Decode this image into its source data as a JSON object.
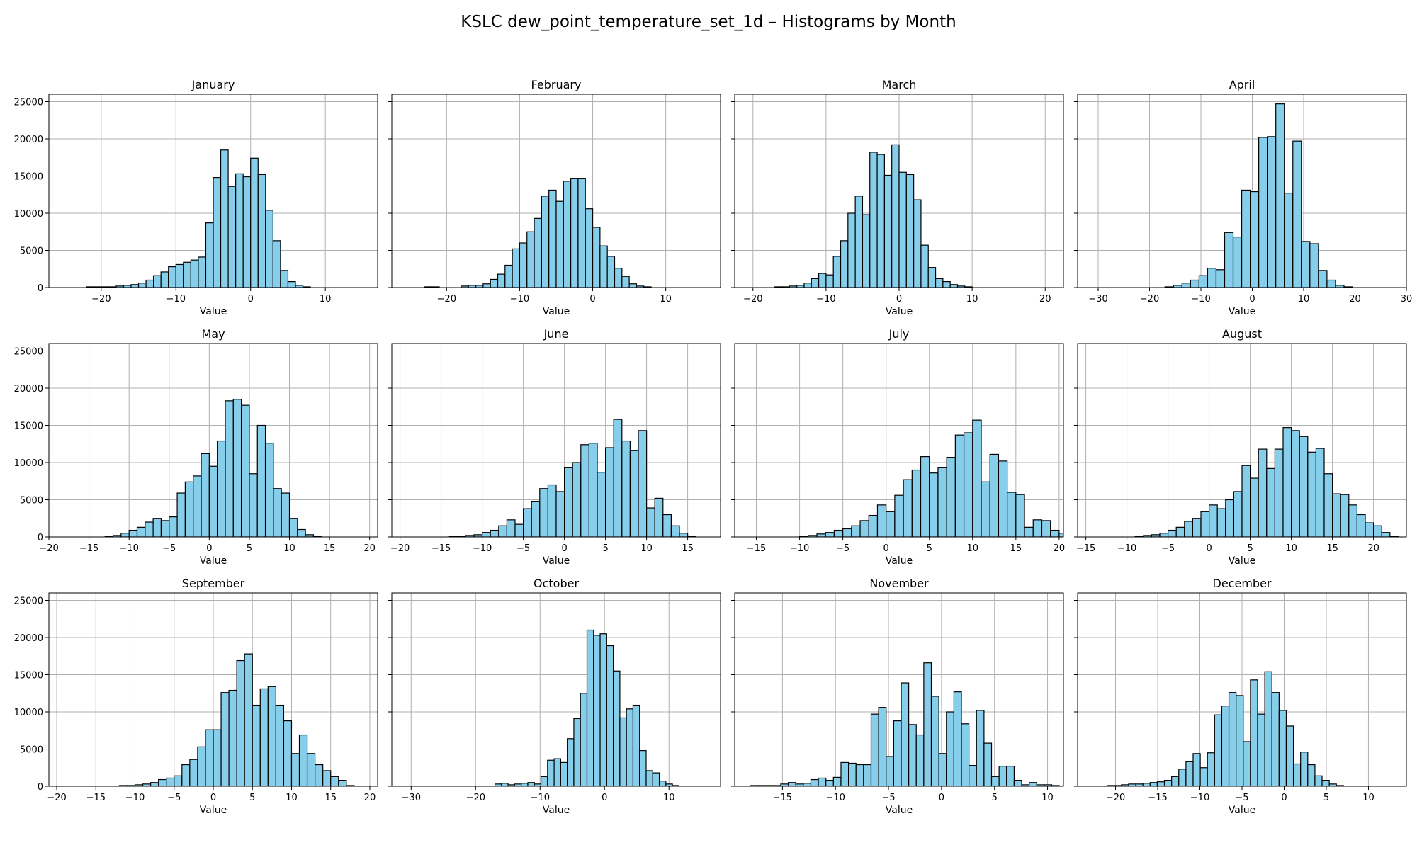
{
  "figure": {
    "title": "KSLC dew_point_temperature_set_1d – Histograms by Month"
  },
  "style": {
    "bar_fill": "#87ceeb",
    "bar_edge": "#000000",
    "grid_color": "#b0b0b0"
  },
  "chart_data": {
    "type": "bar",
    "shared_y": true,
    "ylim": [
      0,
      26000
    ],
    "yticks": [
      0,
      5000,
      10000,
      15000,
      20000,
      25000
    ],
    "grid": true,
    "panels": [
      {
        "title": "January",
        "xlabel": "Value",
        "xlim": [
          -27,
          17
        ],
        "xticks": [
          -20,
          -10,
          0,
          10
        ],
        "bin_start": -22,
        "bin_width": 1,
        "values": [
          100,
          100,
          100,
          100,
          200,
          300,
          400,
          600,
          1000,
          1600,
          2100,
          2800,
          3100,
          3400,
          3700,
          4100,
          8700,
          14800,
          18500,
          13600,
          15300,
          14900,
          17400,
          15200,
          10400,
          6300,
          2300,
          800,
          300,
          100,
          0,
          0,
          0,
          0,
          0,
          0,
          0,
          0
        ]
      },
      {
        "title": "February",
        "xlabel": "Value",
        "xlim": [
          -27.5,
          17.5
        ],
        "xticks": [
          -20,
          -10,
          0,
          10
        ],
        "bin_start": -23,
        "bin_width": 1,
        "values": [
          100,
          100,
          0,
          0,
          0,
          200,
          300,
          300,
          500,
          1100,
          1800,
          3000,
          5200,
          6000,
          7500,
          9300,
          12300,
          13100,
          11600,
          14300,
          14700,
          14700,
          10600,
          8100,
          5600,
          4200,
          2600,
          1500,
          500,
          200,
          100,
          0,
          0,
          0,
          0,
          0,
          0,
          0,
          0
        ]
      },
      {
        "title": "March",
        "xlabel": "Value",
        "xlim": [
          -22.5,
          22.5
        ],
        "xticks": [
          -20,
          -10,
          0,
          10,
          20
        ],
        "bin_start": -17,
        "bin_width": 1,
        "values": [
          100,
          100,
          200,
          300,
          600,
          1200,
          1900,
          1700,
          4200,
          6300,
          10000,
          12300,
          9800,
          18200,
          17900,
          15100,
          19200,
          15500,
          15200,
          11800,
          5700,
          2700,
          1200,
          800,
          400,
          200,
          100,
          0,
          0,
          0,
          0,
          0,
          0,
          0,
          0,
          0,
          0,
          0
        ]
      },
      {
        "title": "April",
        "xlabel": "Value",
        "xlim": [
          -34,
          30
        ],
        "xticks": [
          -30,
          -20,
          -10,
          0,
          10,
          20,
          30
        ],
        "bin_start": -17,
        "bin_width": 1.66,
        "values": [
          100,
          300,
          600,
          1000,
          1600,
          2600,
          2400,
          7400,
          6800,
          13100,
          12900,
          20200,
          20300,
          24700,
          12700,
          19700,
          6200,
          5900,
          2300,
          1000,
          300,
          100,
          0,
          0,
          0,
          0,
          0
        ]
      },
      {
        "title": "May",
        "xlabel": "Value",
        "xlim": [
          -20,
          21
        ],
        "xticks": [
          -20,
          -15,
          -10,
          -5,
          0,
          5,
          10,
          15,
          20
        ],
        "bin_start": -13,
        "bin_width": 1,
        "values": [
          100,
          200,
          500,
          900,
          1300,
          2000,
          2500,
          2200,
          2700,
          5900,
          7400,
          8200,
          11200,
          9500,
          12900,
          18300,
          18500,
          17700,
          8500,
          15000,
          12600,
          6500,
          5900,
          2500,
          1000,
          300,
          100,
          0,
          0,
          0,
          0,
          0,
          0
        ]
      },
      {
        "title": "June",
        "xlabel": "Value",
        "xlim": [
          -21,
          19
        ],
        "xticks": [
          -20,
          -15,
          -10,
          -5,
          0,
          5,
          10,
          15
        ],
        "bin_start": -14,
        "bin_width": 1,
        "values": [
          100,
          100,
          200,
          300,
          600,
          900,
          1500,
          2300,
          1700,
          3800,
          4800,
          6500,
          7000,
          6100,
          9300,
          10000,
          12400,
          12600,
          8700,
          12000,
          15800,
          12900,
          11600,
          14300,
          3900,
          5200,
          3000,
          1500,
          500,
          100,
          0,
          0,
          0
        ]
      },
      {
        "title": "July",
        "xlabel": "Value",
        "xlim": [
          -17.5,
          20.5
        ],
        "xticks": [
          -15,
          -10,
          -5,
          0,
          5,
          10,
          15,
          20
        ],
        "bin_start": -10,
        "bin_width": 1,
        "values": [
          100,
          200,
          400,
          600,
          900,
          1100,
          1500,
          2200,
          2900,
          4300,
          3400,
          5600,
          7700,
          9000,
          10800,
          8600,
          9300,
          10700,
          13700,
          14000,
          15700,
          7400,
          11100,
          10200,
          6000,
          5700,
          1300,
          2300,
          2200,
          900,
          500
        ]
      },
      {
        "title": "August",
        "xlabel": "Value",
        "xlim": [
          -16,
          24
        ],
        "xticks": [
          -15,
          -10,
          -5,
          0,
          5,
          10,
          15,
          20
        ],
        "bin_start": -9,
        "bin_width": 1,
        "values": [
          100,
          200,
          300,
          500,
          900,
          1300,
          2100,
          2500,
          3400,
          4300,
          3800,
          5000,
          6100,
          9600,
          7900,
          11800,
          9200,
          11800,
          14700,
          14300,
          13500,
          11400,
          11900,
          8500,
          5800,
          5700,
          4300,
          3000,
          1900,
          1500,
          600,
          100,
          0
        ]
      },
      {
        "title": "September",
        "xlabel": "Value",
        "xlim": [
          -21,
          21
        ],
        "xticks": [
          -20,
          -15,
          -10,
          -5,
          0,
          5,
          10,
          15,
          20
        ],
        "bin_start": -12,
        "bin_width": 1,
        "values": [
          100,
          100,
          200,
          300,
          500,
          900,
          1100,
          1400,
          2900,
          3600,
          5300,
          7600,
          7600,
          12600,
          12900,
          16900,
          17800,
          10900,
          13100,
          13400,
          10900,
          8800,
          4400,
          6900,
          4400,
          2900,
          2100,
          1300,
          800,
          100,
          0,
          0
        ]
      },
      {
        "title": "October",
        "xlabel": "Value",
        "xlim": [
          -33,
          18
        ],
        "xticks": [
          -30,
          -20,
          -10,
          0,
          10
        ],
        "bin_start": -17,
        "bin_width": 1.02,
        "values": [
          300,
          400,
          200,
          300,
          400,
          500,
          300,
          1300,
          3500,
          3700,
          3200,
          6400,
          9100,
          12500,
          21000,
          20300,
          20500,
          18900,
          15500,
          9200,
          10400,
          10900,
          4800,
          2100,
          1800,
          700,
          300,
          100
        ]
      },
      {
        "title": "November",
        "xlabel": "Value",
        "xlim": [
          -19.5,
          11.5
        ],
        "xticks": [
          -15,
          -10,
          -5,
          0,
          5,
          10
        ],
        "bin_start": -18,
        "bin_width": 0.71,
        "values": [
          100,
          100,
          100,
          100,
          300,
          500,
          300,
          400,
          900,
          1100,
          800,
          1200,
          3200,
          3100,
          2900,
          2900,
          9700,
          10600,
          4000,
          8800,
          13900,
          8300,
          6900,
          16600,
          12100,
          4400,
          10000,
          12700,
          8400,
          2800,
          10200,
          5800,
          1300,
          2700,
          2700,
          800,
          200,
          500,
          200,
          200,
          100
        ]
      },
      {
        "title": "December",
        "xlabel": "Value",
        "xlim": [
          -24.5,
          14.5
        ],
        "xticks": [
          -20,
          -15,
          -10,
          -5,
          0,
          5,
          10
        ],
        "bin_start": -21,
        "bin_width": 0.85,
        "values": [
          100,
          100,
          200,
          300,
          300,
          400,
          500,
          600,
          800,
          1300,
          2300,
          3300,
          4400,
          2500,
          4500,
          9600,
          10800,
          12600,
          12200,
          6000,
          14300,
          9700,
          15400,
          12600,
          10200,
          8100,
          3000,
          4600,
          2900,
          1400,
          800,
          300,
          100,
          0
        ]
      }
    ]
  }
}
